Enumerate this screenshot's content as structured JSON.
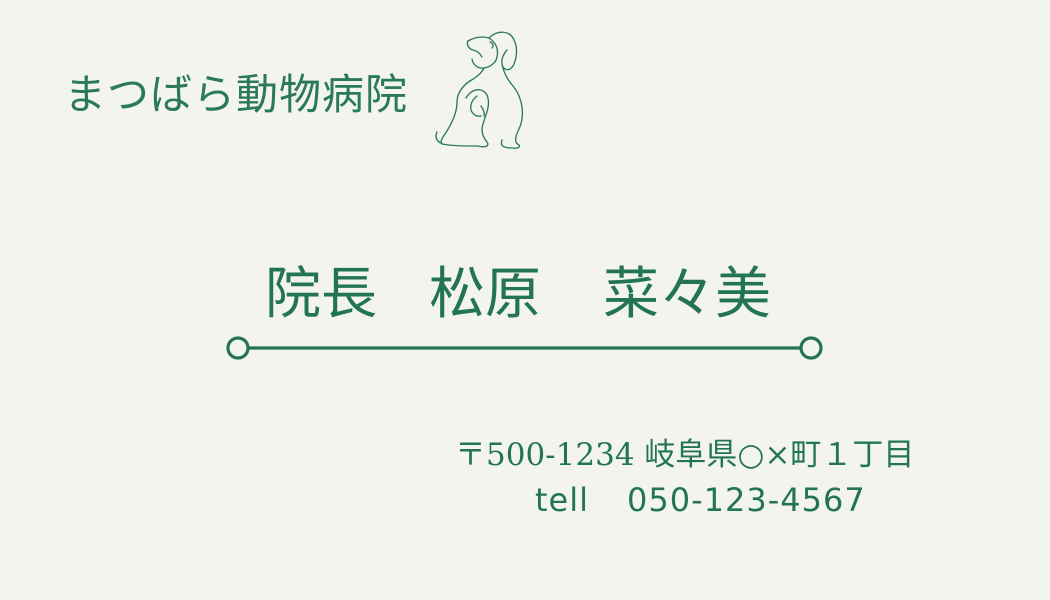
{
  "clinic": {
    "name": "まつばら動物病院",
    "logo_icon": "dog-line-art-icon"
  },
  "director": {
    "title": "院長",
    "surname": "松原",
    "given_name": "菜々美"
  },
  "contact": {
    "address": "〒500-1234 岐阜県○×町１丁目",
    "tel_label": "tell",
    "tel_number": "050-123-4567"
  },
  "colors": {
    "background": "#f4f4ef",
    "primary": "#237456"
  }
}
